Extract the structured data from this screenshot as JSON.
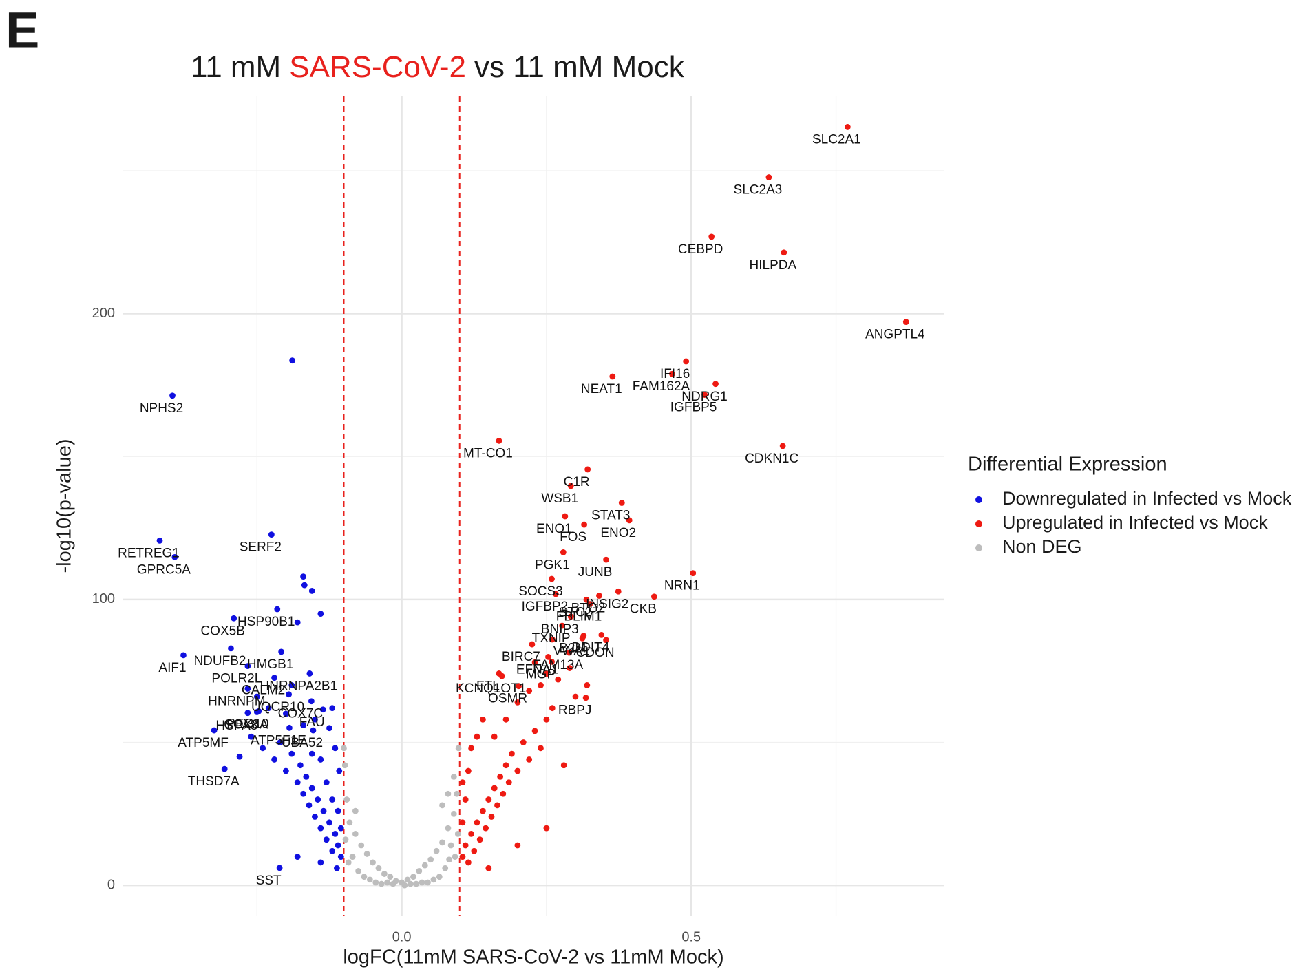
{
  "panel_label": "E",
  "chart_data": {
    "type": "scatter",
    "title_parts": [
      "11 mM",
      "SARS-CoV-2",
      "vs 11 mM Mock"
    ],
    "title_colors": [
      "#1a1a1a",
      "#e8211d",
      "#1a1a1a"
    ],
    "xlabel": "logFC(11mM SARS-CoV-2 vs 11mM Mock)",
    "ylabel": "-log10(p-value)",
    "xlim": [
      -0.481,
      0.936
    ],
    "ylim": [
      -10.8,
      276
    ],
    "xticks": [
      {
        "value": 0,
        "label": "0.0"
      },
      0.5
    ],
    "yticks": [
      0,
      100,
      200
    ],
    "x_minor_grid": [
      -0.25,
      0.25,
      0.75
    ],
    "y_minor_grid": [
      50,
      150,
      250
    ],
    "grid": true,
    "vlines": [
      -0.1,
      0.1
    ],
    "vline_color": "#e8211d",
    "legend_title": "Differential Expression",
    "legend_position": "right",
    "series": [
      {
        "name": "Downregulated in Infected vs Mock",
        "color": "#1010e0",
        "x": [
          -0.396,
          -0.418,
          -0.392,
          -0.225,
          -0.215,
          -0.29,
          -0.295,
          -0.377,
          -0.266,
          -0.208,
          -0.22,
          -0.159,
          -0.25,
          -0.266,
          -0.195,
          -0.156,
          -0.136,
          -0.247,
          -0.266,
          -0.194,
          -0.324,
          -0.153,
          -0.306,
          -0.211,
          -0.189,
          -0.105,
          -0.11,
          -0.115,
          -0.12,
          -0.125,
          -0.13,
          -0.135,
          -0.14,
          -0.145,
          -0.15,
          -0.155,
          -0.16,
          -0.165,
          -0.17,
          -0.175,
          -0.18,
          -0.19,
          -0.2,
          -0.21,
          -0.22,
          -0.24,
          -0.26,
          -0.105,
          -0.11,
          -0.12,
          -0.13,
          -0.14,
          -0.108,
          -0.115,
          -0.125,
          -0.155,
          -0.17,
          -0.2,
          -0.23,
          -0.112,
          -0.14,
          -0.18,
          -0.168,
          -0.155,
          -0.17,
          -0.14,
          -0.18,
          -0.28,
          -0.12,
          -0.15,
          -0.19,
          -0.25
        ],
        "values": [
          171.3,
          120.6,
          114.8,
          122.7,
          96.6,
          93.4,
          82.9,
          80.5,
          76.7,
          81.7,
          72.6,
          74.1,
          60.6,
          68.8,
          66.8,
          64.4,
          61.5,
          60.9,
          60.3,
          55.1,
          54.2,
          54.2,
          40.7,
          6.1,
          183.6,
          10,
          14,
          18,
          12,
          22,
          16,
          26,
          20,
          30,
          24,
          34,
          28,
          38,
          32,
          42,
          36,
          46,
          40,
          50,
          44,
          48,
          52,
          20,
          26,
          30,
          36,
          44,
          40,
          48,
          55,
          46,
          56,
          60,
          62,
          6,
          8,
          10,
          105,
          103,
          108,
          95,
          92,
          45,
          62,
          58,
          70,
          66
        ],
        "labels": [
          "NPHS2",
          "RETREG1",
          "GPRC5A",
          "SERF2",
          "HSP90B1",
          "COX5B",
          "NDUFB2",
          "AIF1",
          "POLR2L",
          "HMGB1",
          "CALM2",
          "HNRNPA2B1",
          "COX8A",
          "HNRNPM",
          "UQCR10",
          "COX7C",
          "FAU",
          "PEG10",
          "HSPA8",
          "ATP5F1E",
          "ATP5MF",
          "UBA52",
          "THSD7A",
          "SST",
          null,
          null,
          null,
          null,
          null,
          null,
          null,
          null,
          null,
          null,
          null,
          null,
          null,
          null,
          null,
          null,
          null,
          null,
          null,
          null,
          null,
          null,
          null,
          null,
          null,
          null,
          null,
          null,
          null,
          null,
          null,
          null,
          null,
          null,
          null,
          null,
          null,
          null,
          null,
          null,
          null,
          null,
          null,
          null,
          null,
          null,
          null,
          null
        ]
      },
      {
        "name": "Upregulated in Infected vs Mock",
        "color": "#ee1a12",
        "x": [
          0.77,
          0.634,
          0.535,
          0.66,
          0.871,
          0.491,
          0.364,
          0.467,
          0.542,
          0.523,
          0.658,
          0.168,
          0.321,
          0.292,
          0.38,
          0.282,
          0.315,
          0.393,
          0.279,
          0.353,
          0.503,
          0.259,
          0.266,
          0.319,
          0.341,
          0.374,
          0.325,
          0.436,
          0.292,
          0.277,
          0.314,
          0.345,
          0.225,
          0.353,
          0.289,
          0.312,
          0.253,
          0.259,
          0.173,
          0.168,
          0.318,
          0.202,
          0.105,
          0.11,
          0.115,
          0.12,
          0.125,
          0.13,
          0.135,
          0.14,
          0.145,
          0.15,
          0.155,
          0.16,
          0.165,
          0.17,
          0.175,
          0.18,
          0.185,
          0.19,
          0.2,
          0.21,
          0.22,
          0.23,
          0.24,
          0.25,
          0.26,
          0.105,
          0.11,
          0.115,
          0.12,
          0.13,
          0.14,
          0.16,
          0.18,
          0.2,
          0.22,
          0.24,
          0.25,
          0.27,
          0.29,
          0.3,
          0.32,
          0.28,
          0.25,
          0.15,
          0.2,
          0.105,
          0.26,
          0.23
        ],
        "values": [
          265.3,
          247.7,
          226.9,
          221.4,
          197.1,
          183.3,
          178,
          178.9,
          175.4,
          171.6,
          153.7,
          155.5,
          145.5,
          139.7,
          133.8,
          129.1,
          126.2,
          127.7,
          116.5,
          113.9,
          109.2,
          107.2,
          101.9,
          99.9,
          101.3,
          102.8,
          98.4,
          101,
          94,
          90.8,
          87.3,
          87.6,
          84.3,
          85.8,
          81.4,
          86.4,
          79.9,
          78.2,
          73.2,
          74.1,
          65.6,
          69.7,
          10,
          14,
          8,
          18,
          12,
          22,
          16,
          26,
          20,
          30,
          24,
          34,
          28,
          38,
          32,
          42,
          36,
          46,
          40,
          50,
          44,
          54,
          48,
          58,
          62,
          22,
          30,
          40,
          48,
          52,
          58,
          52,
          58,
          64,
          68,
          70,
          74,
          72,
          76,
          66,
          70,
          42,
          20,
          6,
          14,
          36,
          86,
          78
        ],
        "labels": [
          "SLC2A1",
          "SLC2A3",
          "CEBPD",
          "HILPDA",
          "ANGPTL4",
          "IFI16",
          "NEAT1",
          "FAM162A",
          "NDRG1",
          "IGFBP5",
          "CDKN1C",
          "MT-CO1",
          "C1R",
          "WSB1",
          "STAT3",
          "ENO1",
          "FOS",
          "ENO2",
          "PGK1",
          "JUNB",
          "NRN1",
          "SOCS3",
          "IGFBP2",
          "STC2",
          "BTG2",
          "INSIG2",
          "FBLIM1",
          "CKB",
          "BNIP3",
          "TXNIP",
          "B2M",
          "DDIT4",
          "BIRC7",
          "CDON",
          "FAM13A",
          "VWA1",
          "EFNA1",
          "MGP",
          "KCNQ1OT1",
          "FTL",
          "RBPJ",
          "OSMR",
          null,
          null,
          null,
          null,
          null,
          null,
          null,
          null,
          null,
          null,
          null,
          null,
          null,
          null,
          null,
          null,
          null,
          null,
          null,
          null,
          null,
          null,
          null,
          null,
          null,
          null,
          null,
          null,
          null,
          null,
          null,
          null,
          null,
          null,
          null,
          null,
          null,
          null,
          null,
          null,
          null,
          null,
          null,
          null,
          null,
          null,
          null,
          null
        ]
      },
      {
        "name": "Non DEG",
        "color": "#bdbdbd",
        "x": [
          0,
          0.01,
          -0.01,
          0.02,
          -0.02,
          0.03,
          -0.03,
          0.04,
          -0.04,
          0.05,
          -0.05,
          0.06,
          -0.06,
          0.07,
          -0.07,
          0.08,
          -0.08,
          0.09,
          -0.09,
          0.095,
          -0.095,
          0.09,
          -0.098,
          0.085,
          -0.085,
          0.075,
          -0.075,
          0.065,
          -0.065,
          0.055,
          -0.055,
          0.045,
          -0.045,
          0.035,
          -0.035,
          0.025,
          -0.025,
          0.015,
          -0.015,
          0.005,
          0.097,
          -0.097,
          0.092,
          -0.092,
          0.082,
          -0.08,
          0.07,
          0.098,
          -0.1,
          0.08
        ],
        "values": [
          1,
          2,
          1.5,
          3,
          3,
          5,
          4,
          7,
          6,
          9,
          8,
          12,
          11,
          15,
          14,
          20,
          18,
          25,
          22,
          32,
          30,
          38,
          42,
          14,
          10,
          6,
          5,
          3,
          3,
          2,
          2,
          1,
          1,
          1,
          0.5,
          0.5,
          1,
          0.5,
          0.5,
          0,
          18,
          16,
          10,
          8,
          9,
          26,
          28,
          48,
          48,
          32
        ]
      }
    ]
  }
}
